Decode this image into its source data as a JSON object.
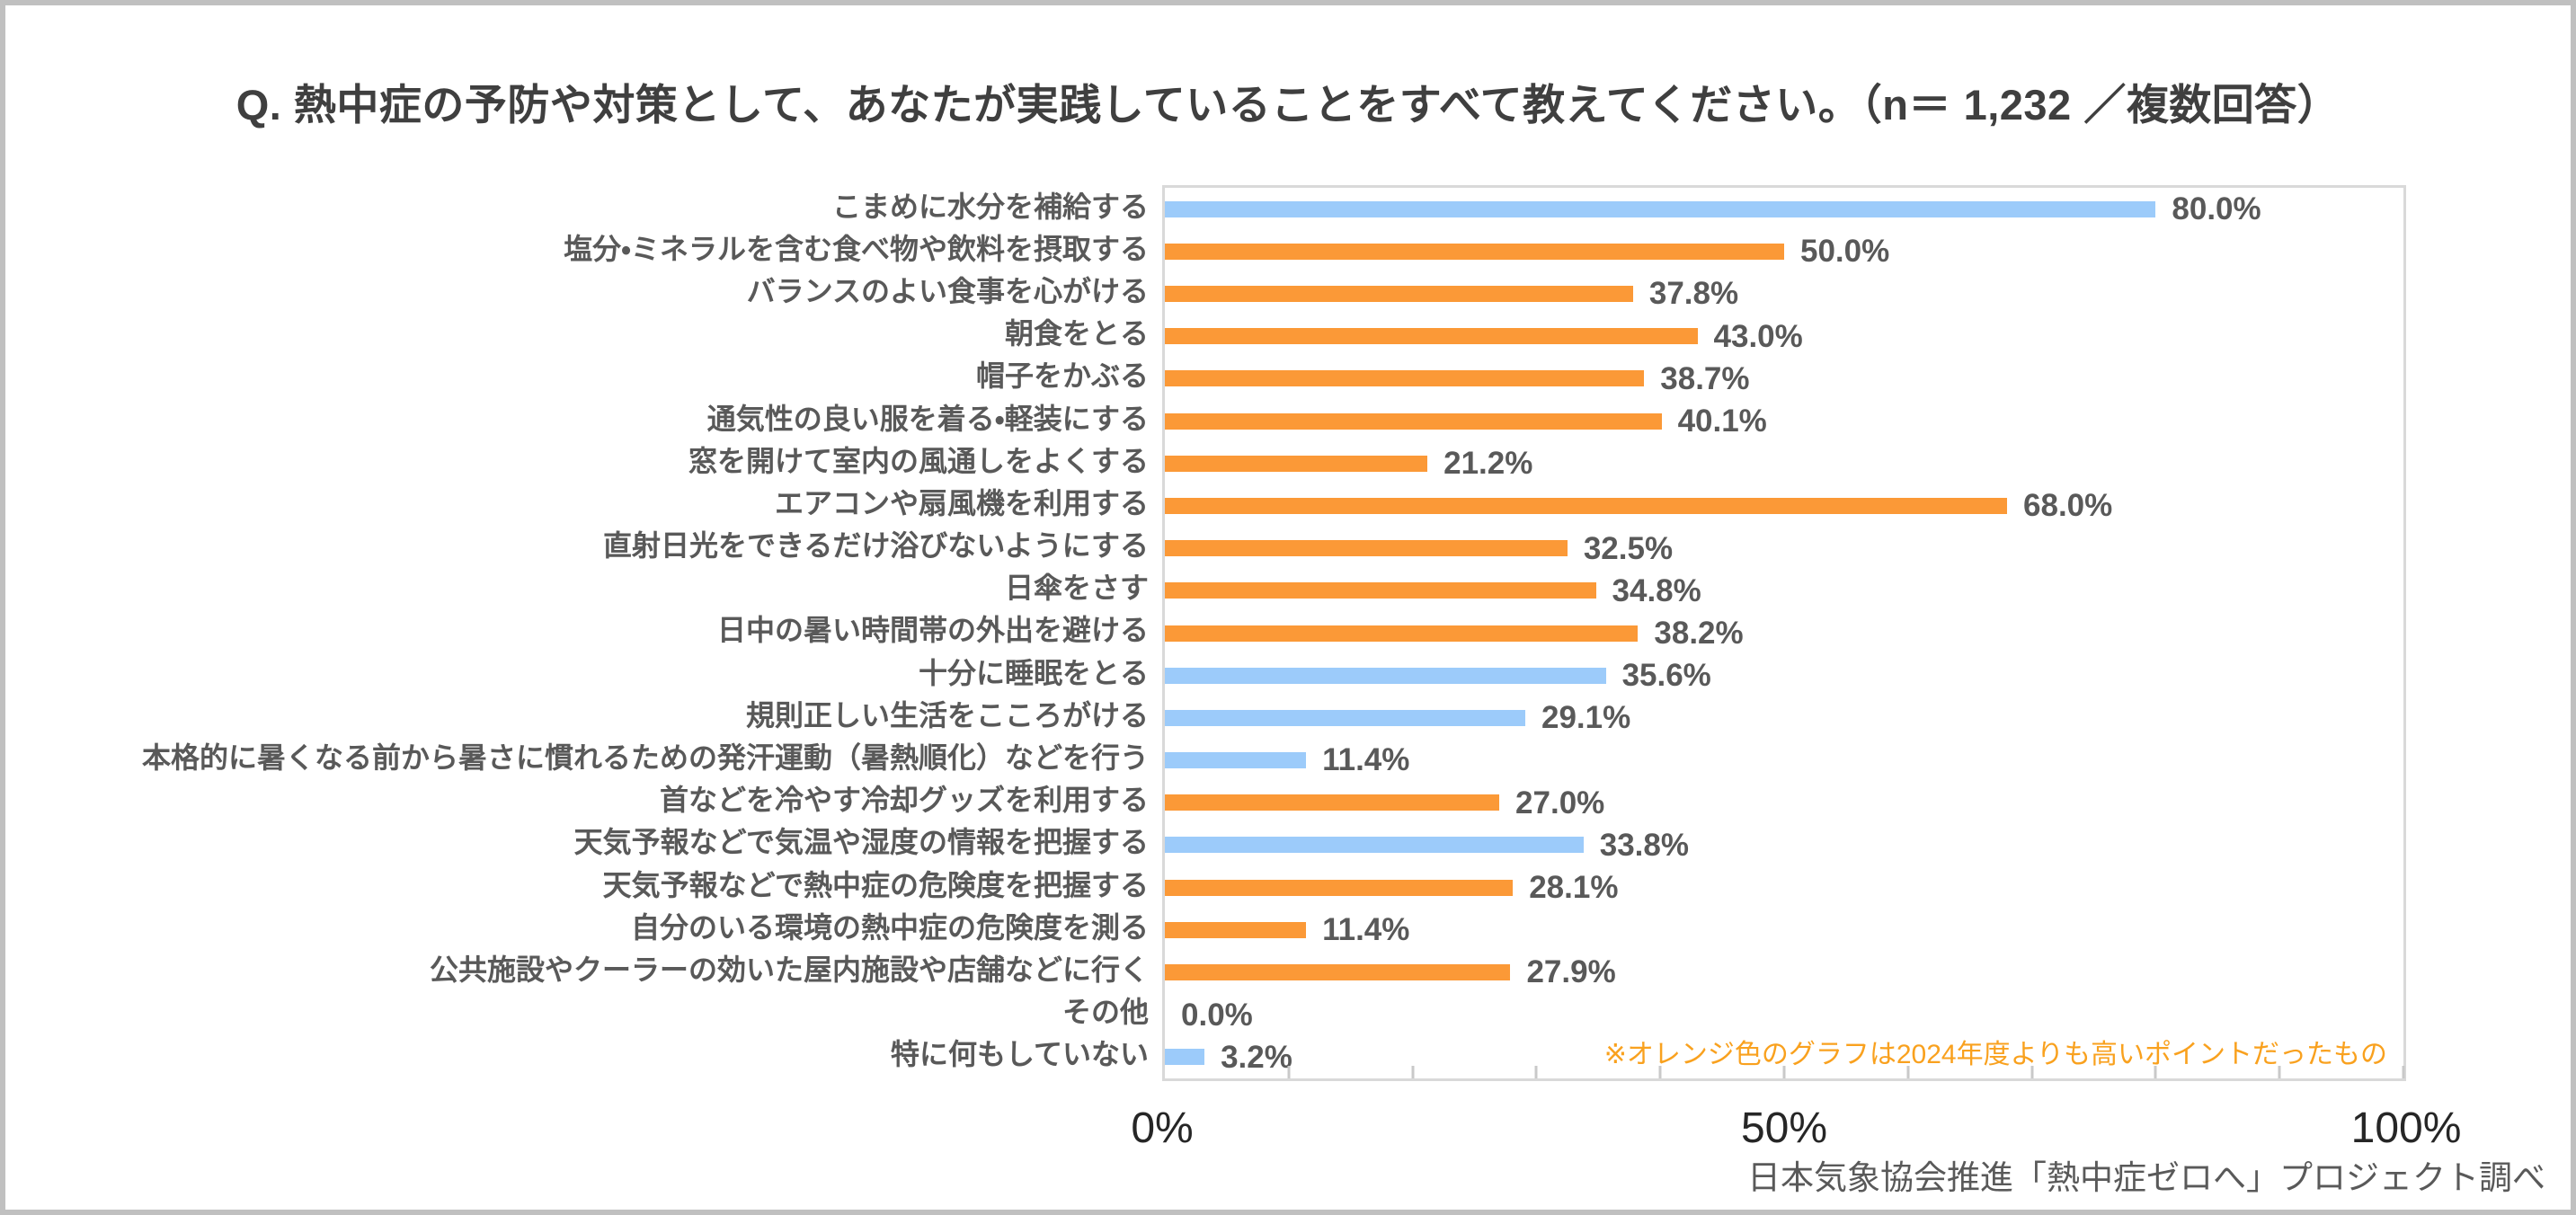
{
  "title": "Q. 熱中症の予防や対策として、あなたが実践していることをすべて教えてください。（n＝ 1,232 ／複数回答）",
  "source": "日本気象協会推進「熱中症ゼロへ」プロジェクト調べ",
  "colors": {
    "bar_blue": "#9CCBFA",
    "bar_orange": "#FB9937",
    "note_orange": "#F9A11E",
    "title_text": "#3F3F3F",
    "label_text": "#595959",
    "axis_text": "#262626",
    "plot_border": "#D9D9D9",
    "tick_gray": "#C9C9C9",
    "frame_gray": "#C0C0C0"
  },
  "chart_data": {
    "type": "bar",
    "orientation": "horizontal",
    "title": "Q. 熱中症の予防や対策として、あなたが実践していることをすべて教えてください。（n＝ 1,232 ／複数回答）",
    "categories": [
      "こまめに水分を補給する",
      "塩分・ミネラルを含む食べ物や飲料を摂取する",
      "バランスのよい食事を心がける",
      "朝食をとる",
      "帽子をかぶる",
      "通気性の良い服を着る・軽装にする",
      "窓を開けて室内の風通しをよくする",
      "エアコンや扇風機を利用する",
      "直射日光をできるだけ浴びないようにする",
      "日傘をさす",
      "日中の暑い時間帯の外出を避ける",
      "十分に睡眠をとる",
      "規則正しい生活をこころがける",
      "本格的に暑くなる前から暑さに慣れるための発汗運動（暑熱順化）などを行う",
      "首などを冷やす冷却グッズを利用する",
      "天気予報などで気温や湿度の情報を把握する",
      "天気予報などで熱中症の危険度を把握する",
      "自分のいる環境の熱中症の危険度を測る",
      "公共施設やクーラーの効いた屋内施設や店舗などに行く",
      "その他",
      "特に何もしていない"
    ],
    "values": [
      80.0,
      50.0,
      37.8,
      43.0,
      38.7,
      40.1,
      21.2,
      68.0,
      32.5,
      34.8,
      38.2,
      35.6,
      29.1,
      11.4,
      27.0,
      33.8,
      28.1,
      11.4,
      27.9,
      0.0,
      3.2
    ],
    "value_labels": [
      "80.0%",
      "50.0%",
      "37.8%",
      "43.0%",
      "38.7%",
      "40.1%",
      "21.2%",
      "68.0%",
      "32.5%",
      "34.8%",
      "38.2%",
      "35.6%",
      "29.1%",
      "11.4%",
      "27.0%",
      "33.8%",
      "28.1%",
      "11.4%",
      "27.9%",
      "0.0%",
      "3.2%"
    ],
    "bar_colors": [
      "blue",
      "orange",
      "orange",
      "orange",
      "orange",
      "orange",
      "orange",
      "orange",
      "orange",
      "orange",
      "orange",
      "blue",
      "blue",
      "blue",
      "orange",
      "blue",
      "orange",
      "orange",
      "orange",
      "none",
      "blue"
    ],
    "xlim": [
      0,
      100
    ],
    "x_tick_labels": [
      "0%",
      "50%",
      "100%"
    ],
    "x_tick_positions": [
      0,
      50,
      100
    ],
    "minor_tick_step_percent": 10,
    "grid": false,
    "legend_note": "※オレンジ色のグラフは2024年度よりも高いポイントだったもの",
    "legend_note_meaning": "オレンジ色＝2024年度よりも高いポイントだった項目"
  }
}
